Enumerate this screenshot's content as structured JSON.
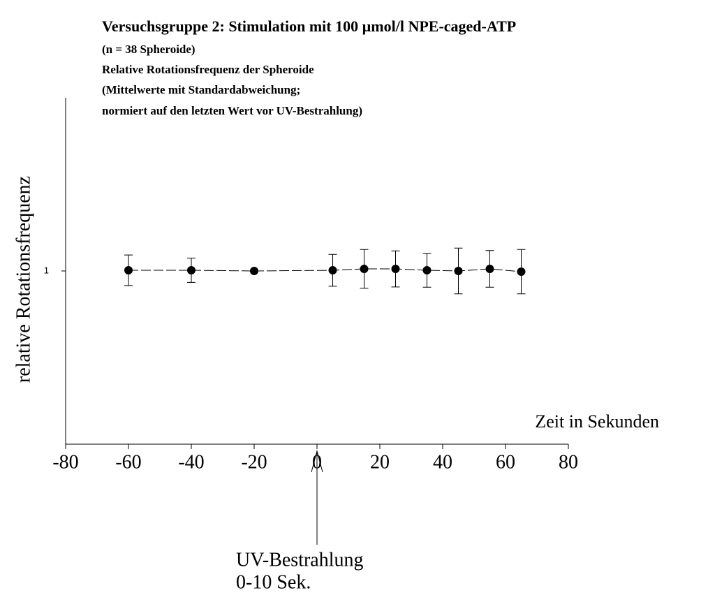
{
  "chart_data": {
    "type": "errorbar",
    "title": "Versuchsgruppe 2: Stimulation mit 100 µmol/l NPE-caged-ATP",
    "subtitle": [
      "(n = 38 Spheroide)",
      "Relative Rotationsfrequenz der Spheroide",
      "(Mittelwerte mit Standardabweichung;",
      "normiert auf den letzten Wert vor UV-Bestrahlung)"
    ],
    "x_label": "Zeit in Sekunden",
    "y_label": "relative Rotationsfrequenz",
    "x": [
      -60,
      -40,
      -20,
      5,
      15,
      25,
      35,
      45,
      55,
      65
    ],
    "series": [
      {
        "color": "#000000",
        "line_style": "dashed",
        "values": [
          1.002,
          1.002,
          1.0,
          1.002,
          1.006,
          1.006,
          1.002,
          1.0,
          1.006,
          0.998
        ],
        "errors": [
          0.044,
          0.035,
          0,
          0.046,
          0.056,
          0.052,
          0.049,
          0.066,
          0.053,
          0.064
        ]
      }
    ],
    "xlim": [
      -80,
      80
    ],
    "xticks": [
      -80,
      -60,
      -40,
      -20,
      0,
      20,
      40,
      60,
      80
    ],
    "ylim": [
      0.5,
      1.5
    ],
    "yticks": [
      1
    ],
    "annotations": [
      {
        "x": 0,
        "text": [
          "UV-Bestrahlung",
          "0-10 Sek."
        ]
      }
    ]
  }
}
